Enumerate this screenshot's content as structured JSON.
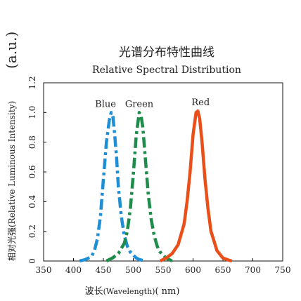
{
  "chart_data": {
    "type": "line",
    "title": "光谱分布特性曲线",
    "subtitle": "Relative Spectral Distribution",
    "ylabel": "相对光强(Relative Luminous Intensity)",
    "yunit": "(a.u.)",
    "xlabel_prefix": "波长",
    "xlabel_paren": "(Wavelength)",
    "xlabel_unit": "( nm)",
    "xlim": [
      350,
      750
    ],
    "ylim": [
      0,
      1.2
    ],
    "x_ticks": [
      "350",
      "400",
      "450",
      "500",
      "550",
      "600",
      "650",
      "700",
      "750"
    ],
    "y_ticks": [
      "0",
      "0.2",
      "0.4",
      "0.6",
      "0.8",
      "1.0",
      "1.2"
    ],
    "grid": false,
    "series": [
      {
        "name": "Blue",
        "color": "#1e8fd6",
        "style": "dashdot",
        "x": [
          410,
          420,
          430,
          435,
          440,
          445,
          450,
          455,
          460,
          463,
          466,
          469,
          472,
          475,
          480,
          485,
          490,
          495,
          500,
          505,
          510,
          520
        ],
        "y": [
          0.0,
          0.01,
          0.03,
          0.07,
          0.15,
          0.3,
          0.55,
          0.8,
          0.95,
          1.0,
          0.97,
          0.85,
          0.7,
          0.5,
          0.3,
          0.17,
          0.1,
          0.06,
          0.04,
          0.02,
          0.01,
          0.0
        ]
      },
      {
        "name": "Green",
        "color": "#1e8c4a",
        "style": "dashdot",
        "x": [
          455,
          465,
          475,
          485,
          490,
          495,
          500,
          505,
          510,
          513,
          516,
          520,
          525,
          530,
          535,
          540,
          545,
          550,
          555,
          560,
          565
        ],
        "y": [
          0.0,
          0.02,
          0.05,
          0.12,
          0.2,
          0.35,
          0.58,
          0.85,
          1.0,
          0.98,
          0.9,
          0.7,
          0.45,
          0.28,
          0.17,
          0.1,
          0.06,
          0.04,
          0.02,
          0.01,
          0.0
        ]
      },
      {
        "name": "Red",
        "color": "#ea4e19",
        "style": "solid",
        "x": [
          545,
          555,
          565,
          575,
          585,
          590,
          595,
          600,
          605,
          608,
          611,
          615,
          620,
          625,
          630,
          640,
          650,
          660,
          665
        ],
        "y": [
          0.0,
          0.02,
          0.05,
          0.11,
          0.25,
          0.4,
          0.6,
          0.85,
          1.0,
          1.01,
          0.96,
          0.8,
          0.55,
          0.35,
          0.2,
          0.07,
          0.02,
          0.005,
          0.0
        ]
      }
    ]
  }
}
